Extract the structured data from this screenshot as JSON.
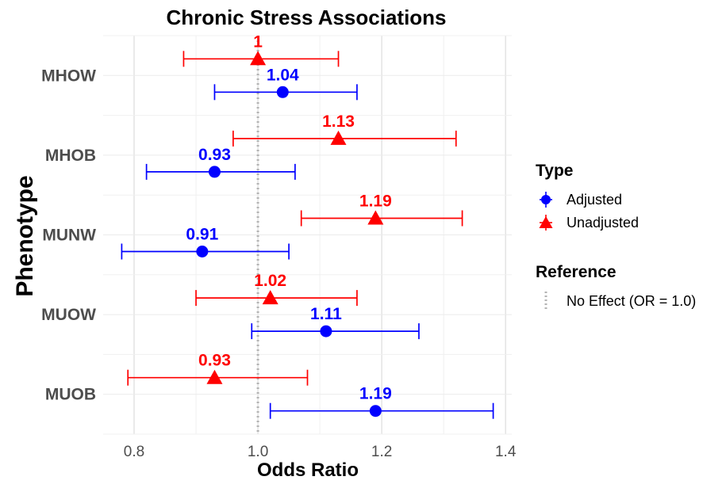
{
  "chart_data": {
    "type": "scatter",
    "title": "Chronic Stress Associations",
    "xlabel": "Odds Ratio",
    "ylabel": "Phenotype",
    "xlim": [
      0.75,
      1.41
    ],
    "xticks": [
      0.8,
      1.0,
      1.2,
      1.4
    ],
    "xtick_labels": [
      "0.8",
      "1.0",
      "1.2",
      "1.4"
    ],
    "categories": [
      "MHOW",
      "MHOB",
      "MUNW",
      "MUOW",
      "MUOB"
    ],
    "grid": true,
    "legend_position": "right",
    "series": [
      {
        "name": "Adjusted",
        "color": "#0000ff",
        "marker": "circle",
        "points": [
          {
            "category": "MHOW",
            "or": 1.04,
            "lower": 0.93,
            "upper": 1.16,
            "label": "1.04"
          },
          {
            "category": "MHOB",
            "or": 0.93,
            "lower": 0.82,
            "upper": 1.06,
            "label": "0.93"
          },
          {
            "category": "MUNW",
            "or": 0.91,
            "lower": 0.78,
            "upper": 1.05,
            "label": "0.91"
          },
          {
            "category": "MUOW",
            "or": 1.11,
            "lower": 0.99,
            "upper": 1.26,
            "label": "1.11"
          },
          {
            "category": "MUOB",
            "or": 1.19,
            "lower": 1.02,
            "upper": 1.38,
            "label": "1.19"
          }
        ]
      },
      {
        "name": "Unadjusted",
        "color": "#ff0000",
        "marker": "triangle",
        "points": [
          {
            "category": "MHOW",
            "or": 1.0,
            "lower": 0.88,
            "upper": 1.13,
            "label": "1"
          },
          {
            "category": "MHOB",
            "or": 1.13,
            "lower": 0.96,
            "upper": 1.32,
            "label": "1.13"
          },
          {
            "category": "MUNW",
            "or": 1.19,
            "lower": 1.07,
            "upper": 1.33,
            "label": "1.19"
          },
          {
            "category": "MUOW",
            "or": 1.02,
            "lower": 0.9,
            "upper": 1.16,
            "label": "1.02"
          },
          {
            "category": "MUOB",
            "or": 0.93,
            "lower": 0.79,
            "upper": 1.08,
            "label": "0.93"
          }
        ]
      }
    ],
    "reference_line": {
      "x": 1.0,
      "label": "No Effect (OR = 1.0)",
      "color": "#b3b3b3",
      "style": "dotted"
    },
    "legend": {
      "type_title": "Type",
      "reference_title": "Reference"
    }
  }
}
